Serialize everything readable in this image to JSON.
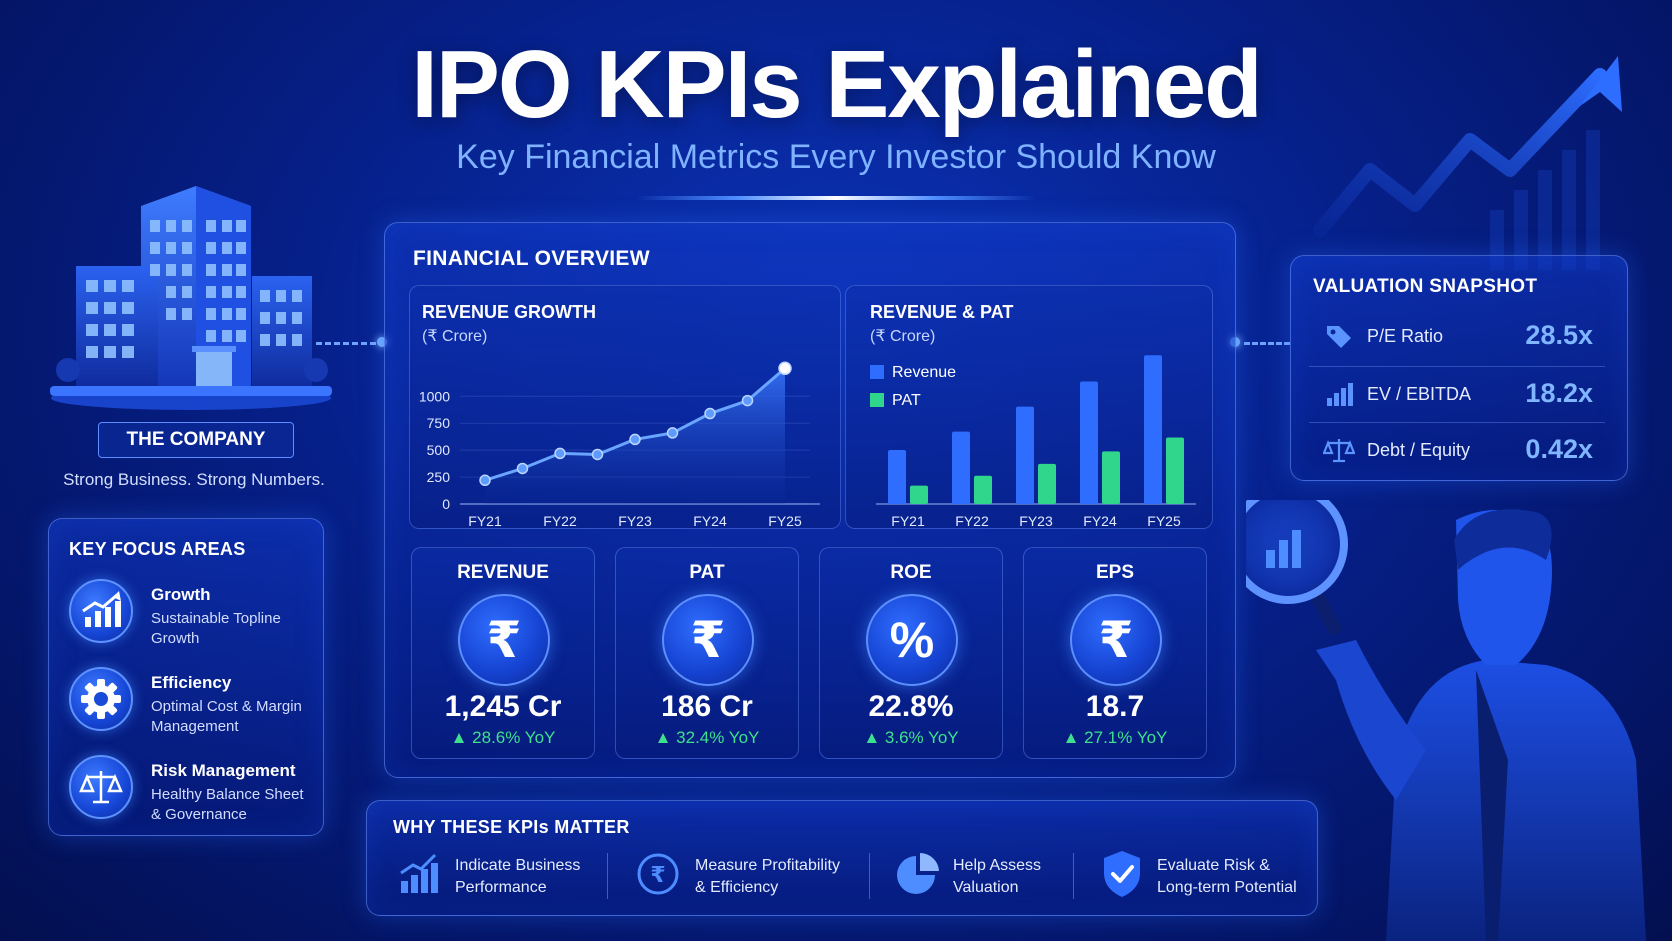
{
  "header": {
    "title": "IPO KPIs Explained",
    "subtitle": "Key Financial Metrics Every Investor Should Know"
  },
  "company": {
    "label": "THE COMPANY",
    "tagline": "Strong Business. Strong Numbers.",
    "icon": "office-building-icon"
  },
  "key_focus": {
    "title": "KEY FOCUS AREAS",
    "items": [
      {
        "title": "Growth",
        "desc_line1": "Sustainable Topline",
        "desc_line2": "Growth",
        "icon": "growth-chart-icon"
      },
      {
        "title": "Efficiency",
        "desc_line1": "Optimal Cost & Margin",
        "desc_line2": "Management",
        "icon": "gear-icon"
      },
      {
        "title": "Risk Management",
        "desc_line1": "Healthy Balance Sheet",
        "desc_line2": "& Governance",
        "icon": "balance-scale-icon"
      }
    ]
  },
  "financial_overview": {
    "title": "FINANCIAL OVERVIEW",
    "kpis": [
      {
        "label": "REVENUE",
        "symbol": "₹",
        "value": "1,245 Cr",
        "yoy": "▲ 28.6% YoY"
      },
      {
        "label": "PAT",
        "symbol": "₹",
        "value": "186 Cr",
        "yoy": "▲ 32.4% YoY"
      },
      {
        "label": "ROE",
        "symbol": "%",
        "value": "22.8%",
        "yoy": "▲ 3.6% YoY"
      },
      {
        "label": "EPS",
        "symbol": "₹",
        "value": "18.7",
        "yoy": "▲ 27.1% YoY"
      }
    ]
  },
  "chart_data": [
    {
      "type": "area",
      "title": "REVENUE GROWTH",
      "subtitle": "(₹ Crore)",
      "categories": [
        "FY21",
        "FY22",
        "FY23",
        "FY24",
        "FY25"
      ],
      "x": [
        0,
        0.5,
        1,
        1.5,
        2,
        2.5,
        3,
        3.5,
        4
      ],
      "values": [
        220,
        330,
        470,
        460,
        600,
        660,
        840,
        960,
        1260
      ],
      "yticks": [
        0,
        250,
        500,
        750,
        1000
      ],
      "ylim": [
        0,
        1300
      ],
      "color": "#4d8dff"
    },
    {
      "type": "bar",
      "title": "REVENUE & PAT",
      "subtitle": "(₹ Crore)",
      "categories": [
        "FY21",
        "FY22",
        "FY23",
        "FY24",
        "FY25"
      ],
      "series": [
        {
          "name": "Revenue",
          "color": "#2f6dff",
          "values": [
            410,
            550,
            740,
            930,
            1130
          ]
        },
        {
          "name": "PAT",
          "color": "#2fd68c",
          "values": [
            140,
            215,
            305,
            400,
            505
          ]
        }
      ],
      "ylim": [
        0,
        1200
      ],
      "legend": "top-left"
    }
  ],
  "valuation": {
    "title": "VALUATION SNAPSHOT",
    "rows": [
      {
        "label": "P/E Ratio",
        "value": "28.5x",
        "icon": "price-tag-icon"
      },
      {
        "label": "EV / EBITDA",
        "value": "18.2x",
        "icon": "bar-chart-icon"
      },
      {
        "label": "Debt / Equity",
        "value": "0.42x",
        "icon": "balance-scale-icon"
      }
    ]
  },
  "why_matter": {
    "title": "WHY THESE KPIs MATTER",
    "items": [
      {
        "line1": "Indicate Business",
        "line2": "Performance",
        "icon": "growth-chart-icon"
      },
      {
        "line1": "Measure Profitability",
        "line2": "& Efficiency",
        "icon": "rupee-coin-icon"
      },
      {
        "line1": "Help Assess",
        "line2": "Valuation",
        "icon": "pie-chart-icon"
      },
      {
        "line1": "Evaluate Risk &",
        "line2": "Long-term Potential",
        "icon": "shield-check-icon"
      }
    ]
  },
  "illustration": {
    "icon": "investor-magnifier-icon",
    "trend_icon": "trend-arrow-icon"
  },
  "colors": {
    "background": "#06208a",
    "accent": "#4d8dff",
    "positive": "#3ee08e",
    "value_blue": "#7fb6ff"
  }
}
